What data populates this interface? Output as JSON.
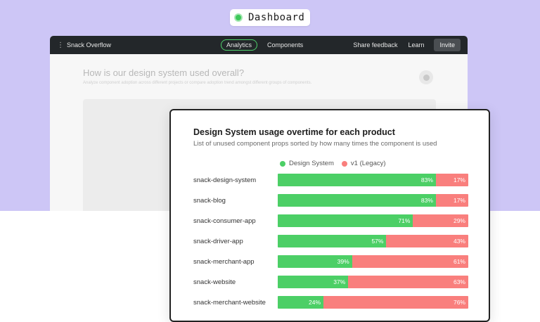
{
  "dashboard": {
    "label": "Dashboard"
  },
  "app": {
    "name": "Snack Overflow",
    "tabs": [
      "Analytics",
      "Components"
    ],
    "links": {
      "share": "Share feedback",
      "learn": "Learn",
      "invite": "Invite"
    },
    "section": {
      "title": "How is our design system used overall?",
      "subtitle": "Analyze component adoption across different projects or compare adoption trend amongst different groups of components."
    }
  },
  "colors": {
    "design_system": "#4ccf66",
    "legacy": "#f97f7d",
    "accent_bg": "#cdc6f6"
  },
  "card": {
    "title": "Design System usage overtime for each product",
    "subtitle": "List of unused component props sorted by how many times the component is used"
  },
  "chart_data": {
    "type": "bar",
    "stacked": true,
    "orientation": "horizontal",
    "categories": [
      "snack-design-system",
      "snack-blog",
      "snack-consumer-app",
      "snack-driver-app",
      "snack-merchant-app",
      "snack-website",
      "snack-merchant-website"
    ],
    "series": [
      {
        "name": "Design System",
        "values": [
          83,
          83,
          71,
          57,
          39,
          37,
          24
        ]
      },
      {
        "name": "v1 (Legacy)",
        "values": [
          17,
          17,
          29,
          43,
          61,
          63,
          76
        ]
      }
    ],
    "value_suffix": "%",
    "legend": "top"
  }
}
